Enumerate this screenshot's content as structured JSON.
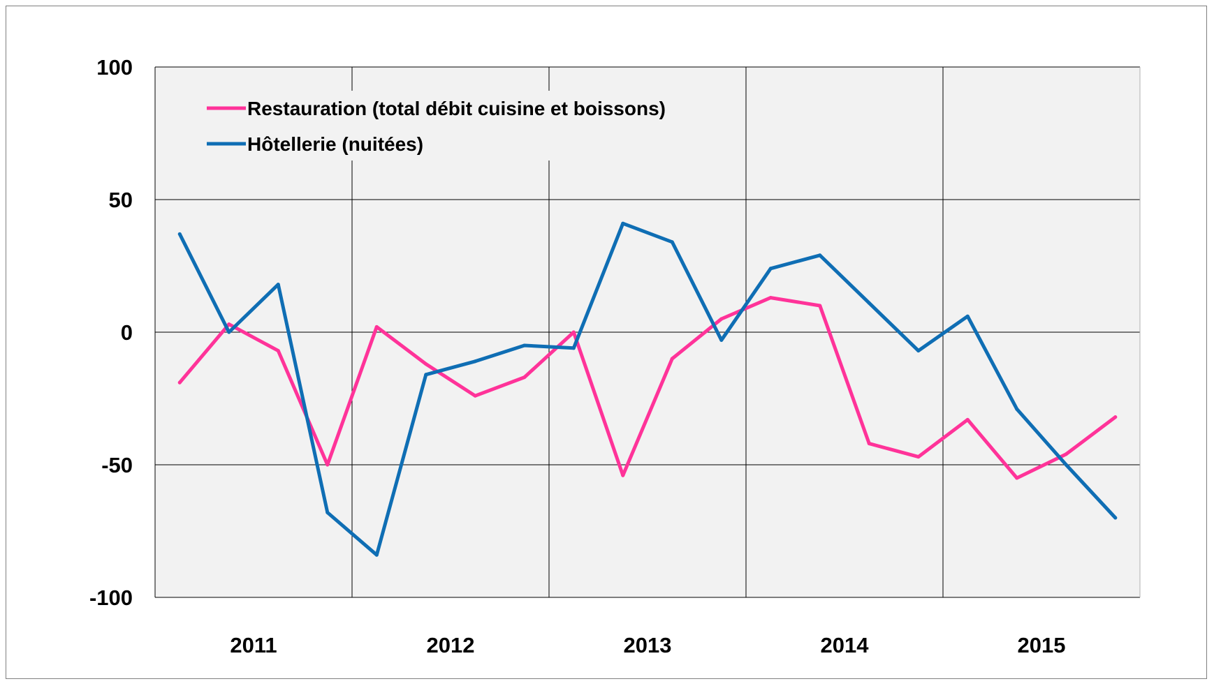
{
  "chart_data": {
    "type": "line",
    "title": "",
    "xlabel": "",
    "ylabel": "",
    "ylim": [
      -100,
      100
    ],
    "yticks": [
      100,
      50,
      0,
      -50,
      -100
    ],
    "years": [
      "2011",
      "2012",
      "2013",
      "2014",
      "2015"
    ],
    "x_quarters": 20,
    "grid": true,
    "legend_position": "top-left",
    "series": [
      {
        "name": "Restauration (total débit cuisine et boissons)",
        "color": "#ff3399",
        "values": [
          -19,
          3,
          -7,
          -50,
          2,
          -12,
          -24,
          -17,
          0,
          -54,
          -10,
          5,
          13,
          10,
          -42,
          -47,
          -33,
          -55,
          -46,
          -32
        ]
      },
      {
        "name": "Hôtellerie (nuitées)",
        "color": "#0f6eb4",
        "values": [
          37,
          0,
          18,
          -68,
          -84,
          -16,
          -11,
          -5,
          -6,
          41,
          34,
          -3,
          24,
          29,
          11,
          -7,
          6,
          -29,
          -50,
          -70
        ]
      }
    ]
  }
}
